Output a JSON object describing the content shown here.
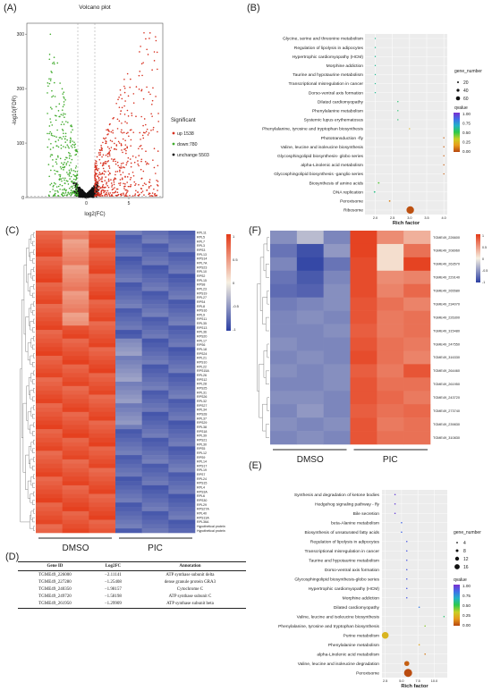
{
  "labels": {
    "a": "(A)",
    "b": "(B)",
    "c": "(C)",
    "d": "(D)",
    "e": "(E)",
    "f": "(F)"
  },
  "colors": {
    "up": "#d7301f",
    "down": "#41ab2d",
    "unchange": "#111111",
    "q_scale": [
      "#7b2fd0",
      "#3f6fe8",
      "#22b2c7",
      "#2ec94a",
      "#c9cf24",
      "#e89b1c",
      "#b7470f"
    ],
    "heat_low": "#2b3fa3",
    "heat_mid": "#f6f0e2",
    "heat_high": "#e43a18"
  },
  "chart_data": [
    {
      "id": "A",
      "type": "scatter",
      "title": "Volcano plot",
      "xlabel": "log2(FC)",
      "ylabel": "-log10(FDR)",
      "xticks": [
        "0",
        "5"
      ],
      "yticks": [
        "0",
        "100",
        "200",
        "300"
      ],
      "xlim": [
        -7,
        9
      ],
      "ylim": [
        0,
        320
      ],
      "legend": {
        "title": "Significant",
        "placement": "right",
        "items": [
          "up 1538",
          "down:780",
          "unchange 5503"
        ]
      },
      "series": [
        {
          "name": "up",
          "count": 1538
        },
        {
          "name": "down",
          "count": 780
        },
        {
          "name": "unchange",
          "count": 5503
        }
      ]
    },
    {
      "id": "B",
      "type": "scatter",
      "xlabel": "Rich factor",
      "xticks": [
        "2.0",
        "2.5",
        "3.0",
        "3.5",
        "4.0"
      ],
      "xlim": [
        1.7,
        4.1
      ],
      "legend_size_title": "gene_number",
      "size_ticks": [
        "20",
        "40",
        "60"
      ],
      "legend_color_title": "qvalue",
      "color_ticks": [
        "1.00",
        "0.75",
        "0.50",
        "0.25",
        "0.00"
      ],
      "categories": [
        "Glycine, serine and threonine metabolism",
        "Regulation of lipolysis in adipocytes",
        "Hypertrophic cardiomyopathy (HCM)",
        "Morphine addiction",
        "Taurine and hypotaurine metabolism",
        "Transcriptional misregulation in cancer",
        "Dorso-ventral axis formation",
        "Dilated cardiomyopathy",
        "Phenylalanine metabolism",
        "Systemic lupus erythematosus",
        "Phenylalanine, tyrosine and tryptophan biosynthesis",
        "Phototransduction -fly",
        "Valine, leucine and isoleucine biosynthesis",
        "Glycosphingolipid biosynthesis- globo series",
        "alpha-Linolenic acid metabolism",
        "Glycosphingolipid biosynthesis -ganglio series",
        "Biosynthesis of amino acids",
        "DNA replication",
        "Peroxisome",
        "Ribosome"
      ],
      "rich_factor": [
        2.0,
        2.0,
        2.0,
        2.0,
        2.0,
        2.0,
        2.0,
        2.66,
        2.66,
        2.66,
        3.0,
        4.0,
        4.0,
        4.0,
        4.0,
        4.0,
        2.1,
        1.98,
        2.42,
        3.02
      ],
      "gene_number": [
        2,
        2,
        2,
        2,
        2,
        2,
        2,
        2,
        2,
        2,
        2,
        2,
        2,
        2,
        2,
        2,
        3,
        3,
        4,
        66
      ],
      "qvalue": [
        0.6,
        0.6,
        0.6,
        0.6,
        0.6,
        0.6,
        0.6,
        0.55,
        0.55,
        0.55,
        0.25,
        0.05,
        0.05,
        0.05,
        0.05,
        0.05,
        0.45,
        0.58,
        0.12,
        0.02
      ]
    },
    {
      "id": "C",
      "type": "heatmap",
      "columns": [
        "DMSO",
        "DMSO",
        "DMSO",
        "PIC",
        "PIC",
        "PIC"
      ],
      "groups": [
        "DMSO",
        "PIC"
      ],
      "scale_ticks": [
        "1",
        "0.5",
        "0",
        "-0.5",
        "-1"
      ],
      "row_labels": [
        "RPL11",
        "RPL5",
        "RPL7",
        "RPL3",
        "RPS3",
        "RPL13",
        "RPS14",
        "RPL7A",
        "RPS23",
        "RPL10",
        "RPS2",
        "RPL15",
        "RPS8",
        "RPL23",
        "RPS19",
        "RPL27",
        "RPS4",
        "RPL8",
        "RPS16",
        "RPL9",
        "RPS11",
        "RPL35",
        "RPS13",
        "RPL36",
        "RPS20",
        "RPL17",
        "RPS6",
        "RPL18",
        "RPS24",
        "RPL21",
        "RPS10",
        "RPL22",
        "RPS15A",
        "RPL26",
        "RPS12",
        "RPL28",
        "RPS25",
        "RPL31",
        "RPS26",
        "RPL32",
        "RPS27",
        "RPL34",
        "RPS28",
        "RPL37",
        "RPS29",
        "RPL38",
        "RPS18",
        "RPL39",
        "RPS21",
        "RPL30",
        "RPS5",
        "RPL12",
        "RPS9",
        "RPL14",
        "RPS17",
        "RPL19",
        "RPS7",
        "RPL24",
        "RPS15",
        "RPL4",
        "RPS3A",
        "RPL6",
        "RPS30",
        "RPL29",
        "RPS27A",
        "RPL40",
        "RPS13A",
        "RPL36A",
        "Hypothetical protein",
        "Hypothetical protein"
      ]
    },
    {
      "id": "F",
      "type": "heatmap",
      "columns": [
        "DMSO",
        "DMSO",
        "DMSO",
        "PIC",
        "PIC",
        "PIC"
      ],
      "groups": [
        "DMSO",
        "PIC"
      ],
      "scale_ticks": [
        "1",
        "0.5",
        "0",
        "-0.5",
        "-1"
      ],
      "row_labels": [
        "TGME49_226600",
        "TGME49_208960",
        "TGME49_263570",
        "TGME49_229140",
        "TGME49_265580",
        "TGME49_234070",
        "TGME49_226300",
        "TGME49_315480",
        "TGME49_247550",
        "TGME49_316330",
        "TGME49_264460",
        "TGME49_261950",
        "TGME49_243720",
        "TGME49_273740",
        "TGME49_239830",
        "TGME49_310830"
      ],
      "values": [
        [
          -0.55,
          -0.3,
          -0.6,
          0.95,
          0.55,
          0.35
        ],
        [
          -0.7,
          -0.9,
          -0.5,
          0.95,
          0.1,
          0.7
        ],
        [
          -0.6,
          -0.95,
          -0.7,
          0.9,
          0.1,
          0.95
        ],
        [
          -0.7,
          -0.85,
          -0.6,
          0.9,
          0.55,
          0.6
        ],
        [
          -0.75,
          -0.8,
          -0.55,
          0.9,
          0.6,
          0.75
        ],
        [
          -0.65,
          -0.6,
          -0.55,
          0.85,
          0.7,
          0.6
        ],
        [
          -0.6,
          -0.55,
          -0.6,
          0.85,
          0.65,
          0.7
        ],
        [
          -0.6,
          -0.6,
          -0.55,
          0.8,
          0.65,
          0.7
        ],
        [
          -0.55,
          -0.6,
          -0.6,
          0.85,
          0.7,
          0.65
        ],
        [
          -0.6,
          -0.55,
          -0.6,
          0.9,
          0.7,
          0.6
        ],
        [
          -0.55,
          -0.6,
          -0.55,
          0.8,
          0.65,
          0.85
        ],
        [
          -0.6,
          -0.6,
          -0.55,
          0.85,
          0.7,
          0.7
        ],
        [
          -0.55,
          -0.55,
          -0.6,
          0.85,
          0.75,
          0.65
        ],
        [
          -0.6,
          -0.5,
          -0.6,
          0.8,
          0.7,
          0.75
        ],
        [
          -0.55,
          -0.6,
          -0.55,
          0.85,
          0.65,
          0.7
        ],
        [
          -0.6,
          -0.55,
          -0.6,
          0.85,
          0.7,
          0.7
        ]
      ]
    },
    {
      "id": "E",
      "type": "scatter",
      "xlabel": "Rich factor",
      "xticks": [
        "2.5",
        "5.0",
        "7.5",
        "10.0"
      ],
      "xlim": [
        2.0,
        12.0
      ],
      "legend_size_title": "gene_number",
      "size_ticks": [
        "4",
        "8",
        "12",
        "16"
      ],
      "legend_color_title": "qvalue",
      "color_ticks": [
        "1.00",
        "0.75",
        "0.50",
        "0.25",
        "0.00"
      ],
      "categories": [
        "Synthesis and degradation of ketone bodies",
        "Hedgehog signaling pathway - fly",
        "Bile secretion",
        "beta-Alanine metabolism",
        "Biosynthesis of unsaturated fatty acids",
        "Regulation of lipolysis in adipocytes",
        "Transcriptional misregulation in cancer",
        "Taurine and hypotaurine metabolism",
        "Dorso-ventral axis formation",
        "Glycosphingolipid biosynthesis-globo series",
        "Hypertrophic cardiomyopathy (HCM)",
        "Morphine addiction",
        "Dilated cardiomyopathy",
        "Valine, leucine and isoleucine biosynthesis",
        "Phenylalanine, tyrosine and tryptophan biosynthesis",
        "Purine metabolism",
        "Phenylalanine metabolism",
        "alpha-Linolenic acid metabolism",
        "Valine, leucine and isoleucine degradation",
        "Peroxisome"
      ],
      "rich_factor": [
        4.0,
        4.0,
        4.0,
        5.0,
        5.0,
        5.8,
        5.8,
        5.8,
        5.8,
        5.8,
        5.8,
        5.8,
        7.7,
        11.5,
        8.6,
        2.5,
        7.7,
        8.6,
        5.8,
        6.0
      ],
      "gene_number": [
        1,
        1,
        1,
        1,
        1,
        1,
        1,
        1,
        1,
        1,
        1,
        1,
        1,
        1,
        1,
        12,
        1,
        1,
        6,
        16
      ],
      "qvalue": [
        0.95,
        0.95,
        0.95,
        0.85,
        0.85,
        0.88,
        0.88,
        0.88,
        0.88,
        0.88,
        0.88,
        0.88,
        0.8,
        0.55,
        0.4,
        0.25,
        0.2,
        0.1,
        0.05,
        0.01
      ]
    }
  ],
  "table": {
    "headers": [
      "Gene ID",
      "Log2FC",
      "Annotation"
    ],
    "rows": [
      [
        "TGME49_226000",
        "−2.11141",
        "ATP synthase subunit delta"
      ],
      [
        "TGME49_227280",
        "−1.25408",
        "dense granule protein GRA3"
      ],
      [
        "TGME49_240350",
        "−1.98157",
        "Cytochrome C"
      ],
      [
        "TGME49_249720",
        "−1.58198",
        "ATP synthase subunit C"
      ],
      [
        "TGME49_261950",
        "−1.29909",
        "ATP synthase subunit beta"
      ]
    ]
  }
}
